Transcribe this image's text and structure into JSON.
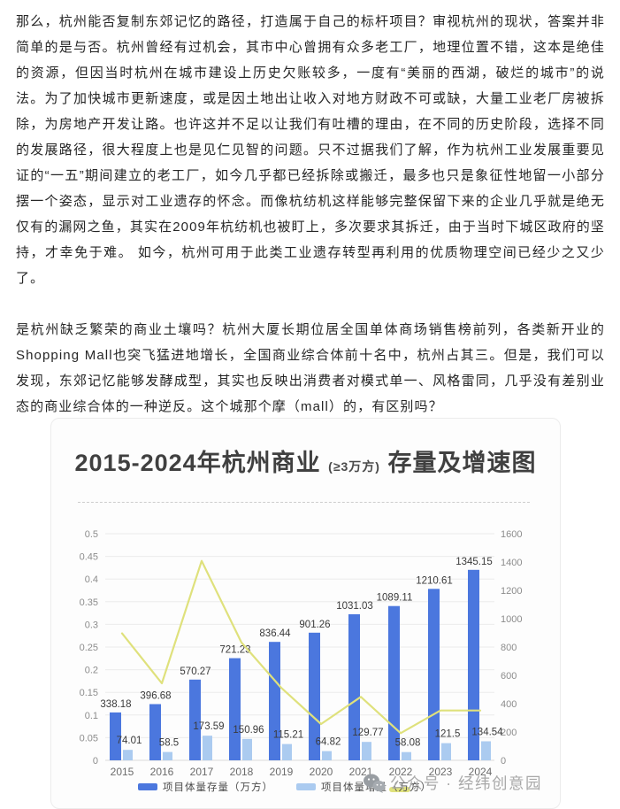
{
  "article": {
    "paragraph1": "那么，杭州能否复制东郊记忆的路径，打造属于自己的标杆项目？审视杭州的现状，答案并非简单的是与否。杭州曾经有过机会，其市中心曾拥有众多老工厂，地理位置不错，这本是绝佳的资源，但因当时杭州在城市建设上历史欠账较多，一度有“美丽的西湖，破烂的城市”的说法。为了加快城市更新速度，或是因土地出让收入对地方财政不可或缺，大量工业老厂房被拆除，为房地产开发让路。也许这并不足以让我们有吐槽的理由，在不同的历史阶段，选择不同的发展路径，很大程度上也是见仁见智的问题。只不过据我们了解，作为杭州工业发展重要见证的“一五”期间建立的老工厂，如今几乎都已经拆除或搬迁，最多也只是象征性地留一小部分摆一个姿态，显示对工业遗存的怀念。而像杭纺机这样能够完整保留下来的企业几乎就是绝无仅有的漏网之鱼，其实在2009年杭纺机也被盯上，多次要求其拆迁，由于当时下城区政府的坚持，才幸免于难。 如今，杭州可用于此类工业遗存转型再利用的优质物理空间已经少之又少了。",
    "paragraph2": "是杭州缺乏繁荣的商业土壤吗？杭州大厦长期位居全国单体商场销售榜前列，各类新开业的Shopping Mall也突飞猛进地增长，全国商业综合体前十名中，杭州占其三。但是，我们可以发现，东郊记忆能够发酵成型，其实也反映出消费者对模式单一、风格雷同，几乎没有差别业态的商业综合体的一种逆反。这个城那个摩（mall）的，有区别吗？"
  },
  "chart_card": {
    "title_prefix": "2015-2024年杭州商业",
    "title_small": "(≥3万方)",
    "title_suffix": "存量及增速图",
    "watermark": "公众号 · 经纬创意园",
    "watermark_icon": "wechat-icon"
  },
  "chart_data": {
    "type": "bar",
    "title": "2015-2024年杭州商业(≥3万方)存量及增速图",
    "categories": [
      "2015",
      "2016",
      "2017",
      "2018",
      "2019",
      "2020",
      "2021",
      "2022",
      "2023",
      "2024"
    ],
    "series": [
      {
        "name": "项目体量存量（万方）",
        "type": "bar",
        "axis": "right",
        "color": "#4b77de",
        "values": [
          338.18,
          396.68,
          570.27,
          721.23,
          836.44,
          901.26,
          1031.03,
          1089.11,
          1210.61,
          1345.15
        ]
      },
      {
        "name": "项目体量增量（万方）",
        "type": "bar",
        "axis": "right",
        "color": "#abcbf0",
        "values": [
          74.01,
          58.5,
          173.59,
          150.96,
          115.21,
          64.82,
          129.77,
          58.08,
          121.5,
          134.54
        ]
      },
      {
        "name": "增速",
        "type": "line",
        "axis": "left",
        "color": "#dfe17c",
        "values": [
          0.28,
          0.17,
          0.44,
          0.26,
          0.16,
          0.08,
          0.14,
          0.06,
          0.11,
          0.11
        ]
      }
    ],
    "left_axis": {
      "min": 0,
      "max": 0.5,
      "ticks": [
        "0",
        "0.05",
        "0.1",
        "0.15",
        "0.2",
        "0.25",
        "0.3",
        "0.35",
        "0.4",
        "0.45",
        "0.5"
      ]
    },
    "right_axis": {
      "min": 0,
      "max": 1600,
      "ticks": [
        "0",
        "200",
        "400",
        "600",
        "800",
        "1000",
        "1200",
        "1400",
        "1600"
      ]
    },
    "grid": true,
    "legend_position": "bottom"
  }
}
